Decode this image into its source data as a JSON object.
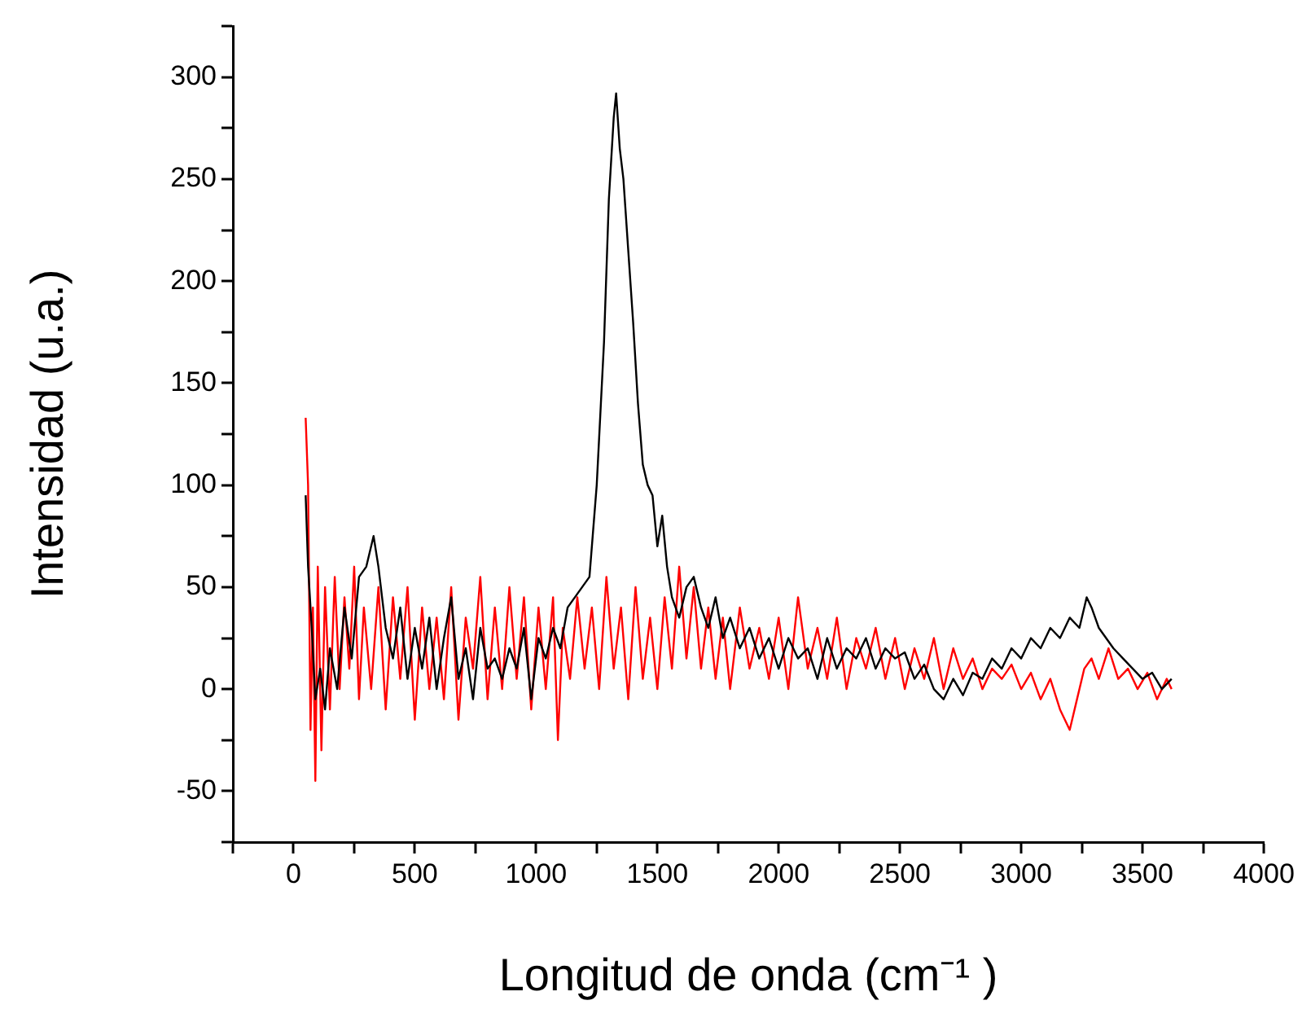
{
  "chart_data": {
    "type": "line",
    "xlabel": "Longitud de onda (cm⁻¹ )",
    "ylabel": "Intensidad (u.a.)",
    "xlim": [
      -250,
      4000
    ],
    "ylim": [
      -75,
      325
    ],
    "xticks": [
      {
        "value": -250,
        "label": null
      },
      0,
      {
        "value": 250,
        "label": null
      },
      500,
      {
        "value": 750,
        "label": null
      },
      1000,
      {
        "value": 1250,
        "label": null
      },
      1500,
      {
        "value": 1750,
        "label": null
      },
      2000,
      {
        "value": 2250,
        "label": null
      },
      2500,
      {
        "value": 2750,
        "label": null
      },
      3000,
      {
        "value": 3250,
        "label": null
      },
      3500,
      {
        "value": 3750,
        "label": null
      },
      4000
    ],
    "yticks": [
      {
        "value": -75,
        "label": null
      },
      -50,
      {
        "value": -25,
        "label": null
      },
      0,
      {
        "value": 25,
        "label": null
      },
      50,
      {
        "value": 75,
        "label": null
      },
      100,
      {
        "value": 125,
        "label": null
      },
      150,
      {
        "value": 175,
        "label": null
      },
      200,
      {
        "value": 225,
        "label": null
      },
      250,
      {
        "value": 275,
        "label": null
      },
      300,
      {
        "value": 325,
        "label": null
      }
    ],
    "grid": false,
    "legend": false,
    "marker": "none",
    "line_style": "solid",
    "series": [
      {
        "color": "#000000",
        "x": [
          50,
          60,
          75,
          90,
          110,
          130,
          150,
          180,
          210,
          240,
          270,
          300,
          330,
          350,
          380,
          410,
          440,
          470,
          500,
          530,
          560,
          590,
          620,
          650,
          680,
          710,
          740,
          770,
          800,
          830,
          860,
          890,
          920,
          950,
          980,
          1010,
          1040,
          1070,
          1100,
          1130,
          1160,
          1190,
          1220,
          1250,
          1280,
          1300,
          1320,
          1330,
          1345,
          1360,
          1380,
          1400,
          1420,
          1440,
          1460,
          1480,
          1500,
          1520,
          1540,
          1560,
          1590,
          1620,
          1650,
          1680,
          1710,
          1740,
          1770,
          1800,
          1840,
          1880,
          1920,
          1960,
          2000,
          2040,
          2080,
          2120,
          2160,
          2200,
          2240,
          2280,
          2320,
          2360,
          2400,
          2440,
          2480,
          2520,
          2560,
          2600,
          2640,
          2680,
          2720,
          2760,
          2800,
          2840,
          2880,
          2920,
          2960,
          3000,
          3040,
          3080,
          3120,
          3160,
          3200,
          3240,
          3270,
          3290,
          3320,
          3350,
          3380,
          3420,
          3460,
          3500,
          3540,
          3580,
          3620
        ],
        "values": [
          95,
          60,
          30,
          -5,
          10,
          -10,
          20,
          0,
          40,
          15,
          55,
          60,
          75,
          60,
          30,
          15,
          40,
          5,
          30,
          10,
          35,
          0,
          25,
          45,
          5,
          20,
          -5,
          30,
          10,
          15,
          5,
          20,
          10,
          30,
          -5,
          25,
          15,
          30,
          20,
          40,
          45,
          50,
          55,
          100,
          170,
          240,
          280,
          292,
          265,
          250,
          215,
          180,
          140,
          110,
          100,
          95,
          70,
          85,
          60,
          45,
          35,
          50,
          55,
          40,
          30,
          45,
          25,
          35,
          20,
          30,
          15,
          25,
          10,
          25,
          15,
          20,
          5,
          25,
          10,
          20,
          15,
          25,
          10,
          20,
          15,
          18,
          5,
          12,
          0,
          -5,
          5,
          -3,
          8,
          5,
          15,
          10,
          20,
          15,
          25,
          20,
          30,
          25,
          35,
          30,
          45,
          40,
          30,
          25,
          20,
          15,
          10,
          5,
          8,
          0,
          5
        ]
      },
      {
        "color": "#ff0000",
        "x": [
          50,
          60,
          70,
          80,
          90,
          100,
          115,
          130,
          150,
          170,
          190,
          210,
          230,
          250,
          270,
          290,
          320,
          350,
          380,
          410,
          440,
          470,
          500,
          530,
          560,
          590,
          620,
          650,
          680,
          710,
          740,
          770,
          800,
          830,
          860,
          890,
          920,
          950,
          980,
          1010,
          1040,
          1070,
          1090,
          1110,
          1140,
          1170,
          1200,
          1230,
          1260,
          1290,
          1320,
          1350,
          1380,
          1410,
          1440,
          1470,
          1500,
          1530,
          1560,
          1590,
          1620,
          1650,
          1680,
          1710,
          1740,
          1770,
          1800,
          1840,
          1880,
          1920,
          1960,
          2000,
          2040,
          2080,
          2120,
          2160,
          2200,
          2240,
          2280,
          2320,
          2360,
          2400,
          2440,
          2480,
          2520,
          2560,
          2600,
          2640,
          2680,
          2720,
          2760,
          2800,
          2840,
          2880,
          2920,
          2960,
          3000,
          3040,
          3080,
          3120,
          3160,
          3200,
          3230,
          3260,
          3290,
          3320,
          3360,
          3400,
          3440,
          3480,
          3520,
          3560,
          3600,
          3620
        ],
        "values": [
          133,
          100,
          -20,
          40,
          -45,
          60,
          -30,
          50,
          -10,
          55,
          0,
          45,
          10,
          60,
          -5,
          40,
          0,
          50,
          -10,
          45,
          5,
          50,
          -15,
          40,
          0,
          35,
          -5,
          50,
          -15,
          35,
          10,
          55,
          -5,
          40,
          0,
          50,
          5,
          45,
          -10,
          40,
          0,
          45,
          -25,
          30,
          5,
          45,
          10,
          40,
          0,
          55,
          10,
          40,
          -5,
          50,
          5,
          35,
          0,
          45,
          10,
          60,
          15,
          50,
          10,
          40,
          5,
          35,
          0,
          40,
          10,
          30,
          5,
          35,
          0,
          45,
          10,
          30,
          5,
          35,
          0,
          25,
          10,
          30,
          5,
          25,
          0,
          20,
          5,
          25,
          0,
          20,
          5,
          15,
          0,
          10,
          5,
          12,
          0,
          8,
          -5,
          5,
          -10,
          -20,
          -5,
          10,
          15,
          5,
          20,
          5,
          10,
          0,
          8,
          -5,
          5,
          0
        ]
      }
    ]
  }
}
